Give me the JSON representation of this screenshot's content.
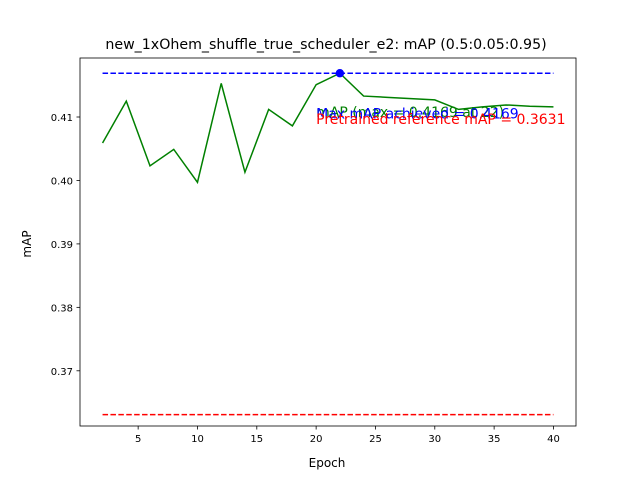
{
  "chart_data": {
    "type": "line",
    "title": "new_1xOhem_shuffle_true_scheduler_e2:  mAP (0.5:0.05:0.95)",
    "xlabel": "Epoch",
    "ylabel": "mAP",
    "xlim": [
      0.1,
      41.9
    ],
    "ylim": [
      0.3613,
      0.4193
    ],
    "grid": false,
    "x_ticks": [
      5,
      10,
      15,
      20,
      25,
      30,
      35,
      40
    ],
    "y_ticks": [
      0.37,
      0.38,
      0.39,
      0.4,
      0.41
    ],
    "series": [
      {
        "name": "mAP (max = 0.4169 at 22)",
        "color": "#008000",
        "style": "solid",
        "x": [
          2,
          4,
          6,
          8,
          10,
          12,
          14,
          16,
          18,
          20,
          22,
          24,
          26,
          28,
          30,
          32,
          34,
          36,
          38,
          40
        ],
        "y": [
          0.4059,
          0.4125,
          0.4023,
          0.4049,
          0.3997,
          0.4153,
          0.4013,
          0.4112,
          0.4086,
          0.4151,
          0.4169,
          0.4133,
          0.4131,
          0.4129,
          0.4127,
          0.4112,
          0.4116,
          0.4119,
          0.4117,
          0.4116
        ]
      },
      {
        "name": "Max mAP achieved = 0.4169",
        "color": "#0000ff",
        "style": "dashed",
        "x": [
          2,
          40
        ],
        "y": [
          0.4169,
          0.4169
        ]
      },
      {
        "name": "Pretrained reference mAP = 0.3631",
        "color": "#ff0000",
        "style": "dashed",
        "x": [
          2,
          40
        ],
        "y": [
          0.3631,
          0.3631
        ]
      }
    ],
    "max_marker": {
      "x": 22,
      "y": 0.4169,
      "color": "#0000ff"
    },
    "annotations": [
      {
        "text": "mAP (max = 0.4169 at 22)",
        "x": 20,
        "y": 0.41,
        "color": "#008000"
      },
      {
        "text": "Max mAP achieved = 0.4169",
        "x": 20,
        "y": 0.4098,
        "color": "#0000ff"
      },
      {
        "text": "Pretrained reference mAP = 0.3631",
        "x": 20,
        "y": 0.4089,
        "color": "#ff0000"
      }
    ]
  }
}
